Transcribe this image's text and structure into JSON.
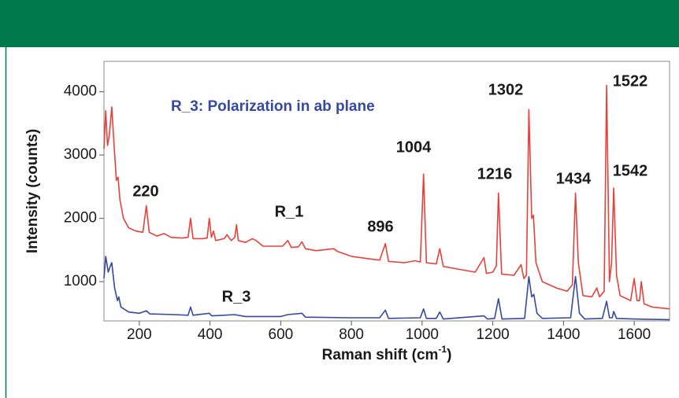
{
  "chart_data": {
    "type": "line",
    "xlabel": [
      "Raman shift (cm",
      "-1",
      ")"
    ],
    "ylabel": "Intensity (counts)",
    "subtitle": "R_3: Polarization in ab plane",
    "annotations": [
      "220",
      "R_1",
      "896",
      "1004",
      "1216",
      "1302",
      "1434",
      "1522",
      "1542",
      "R_3"
    ],
    "xlim": [
      100,
      1700
    ],
    "xticks": [
      200,
      400,
      600,
      800,
      1000,
      1200,
      1400,
      1600
    ],
    "ylim": [
      380,
      4480
    ],
    "yticks": [
      1000,
      2000,
      3000,
      4000
    ],
    "series": [
      {
        "color": "#e8403a",
        "x": [
          100,
          105,
          110,
          115,
          122,
          128,
          135,
          140,
          145,
          155,
          170,
          190,
          210,
          220,
          228,
          250,
          270,
          290,
          320,
          338,
          345,
          352,
          380,
          392,
          398,
          404,
          410,
          416,
          440,
          448,
          460,
          470,
          475,
          480,
          500,
          520,
          530,
          550,
          580,
          605,
          620,
          630,
          650,
          660,
          670,
          700,
          750,
          760,
          800,
          850,
          880,
          896,
          905,
          950,
          980,
          995,
          1004,
          1012,
          1040,
          1050,
          1060,
          1100,
          1150,
          1175,
          1182,
          1200,
          1210,
          1216,
          1225,
          1260,
          1280,
          1288,
          1295,
          1302,
          1310,
          1315,
          1322,
          1340,
          1380,
          1410,
          1425,
          1434,
          1442,
          1455,
          1480,
          1494,
          1502,
          1515,
          1522,
          1530,
          1536,
          1542,
          1550,
          1560,
          1590,
          1600,
          1608,
          1615,
          1620,
          1628,
          1650,
          1700
        ],
        "values": [
          3100,
          3700,
          3150,
          3300,
          3760,
          3200,
          2600,
          2650,
          2300,
          2000,
          1850,
          1800,
          1780,
          2200,
          1780,
          1720,
          1760,
          1700,
          1690,
          1700,
          2000,
          1680,
          1680,
          1690,
          2000,
          1700,
          1800,
          1650,
          1680,
          1740,
          1650,
          1700,
          1900,
          1650,
          1620,
          1680,
          1650,
          1560,
          1560,
          1560,
          1650,
          1540,
          1550,
          1630,
          1520,
          1490,
          1520,
          1480,
          1400,
          1360,
          1340,
          1600,
          1320,
          1300,
          1330,
          1310,
          2700,
          1300,
          1280,
          1520,
          1240,
          1200,
          1150,
          1380,
          1130,
          1150,
          1250,
          2400,
          1120,
          1100,
          1270,
          1050,
          1100,
          3720,
          2000,
          2050,
          1300,
          1000,
          900,
          850,
          950,
          2400,
          1300,
          780,
          760,
          900,
          760,
          850,
          4100,
          1000,
          1300,
          2480,
          1100,
          780,
          700,
          1050,
          700,
          700,
          1000,
          650,
          600,
          570
        ]
      },
      {
        "color": "#3549a0",
        "x": [
          100,
          105,
          112,
          118,
          122,
          130,
          138,
          142,
          148,
          170,
          200,
          220,
          230,
          300,
          338,
          345,
          352,
          398,
          405,
          470,
          500,
          600,
          620,
          660,
          670,
          800,
          880,
          896,
          905,
          995,
          1004,
          1012,
          1040,
          1050,
          1060,
          1175,
          1185,
          1205,
          1216,
          1226,
          1290,
          1302,
          1310,
          1316,
          1325,
          1340,
          1420,
          1434,
          1445,
          1460,
          1510,
          1522,
          1530,
          1538,
          1542,
          1550,
          1600,
          1700
        ],
        "values": [
          1050,
          1400,
          1150,
          1250,
          1300,
          900,
          700,
          760,
          600,
          520,
          500,
          540,
          490,
          480,
          470,
          600,
          470,
          500,
          460,
          480,
          450,
          450,
          480,
          500,
          440,
          430,
          430,
          550,
          420,
          430,
          570,
          420,
          420,
          520,
          410,
          460,
          410,
          420,
          730,
          410,
          420,
          1080,
          760,
          800,
          500,
          420,
          430,
          1080,
          500,
          410,
          420,
          690,
          430,
          430,
          530,
          420,
          410,
          400
        ]
      }
    ]
  }
}
